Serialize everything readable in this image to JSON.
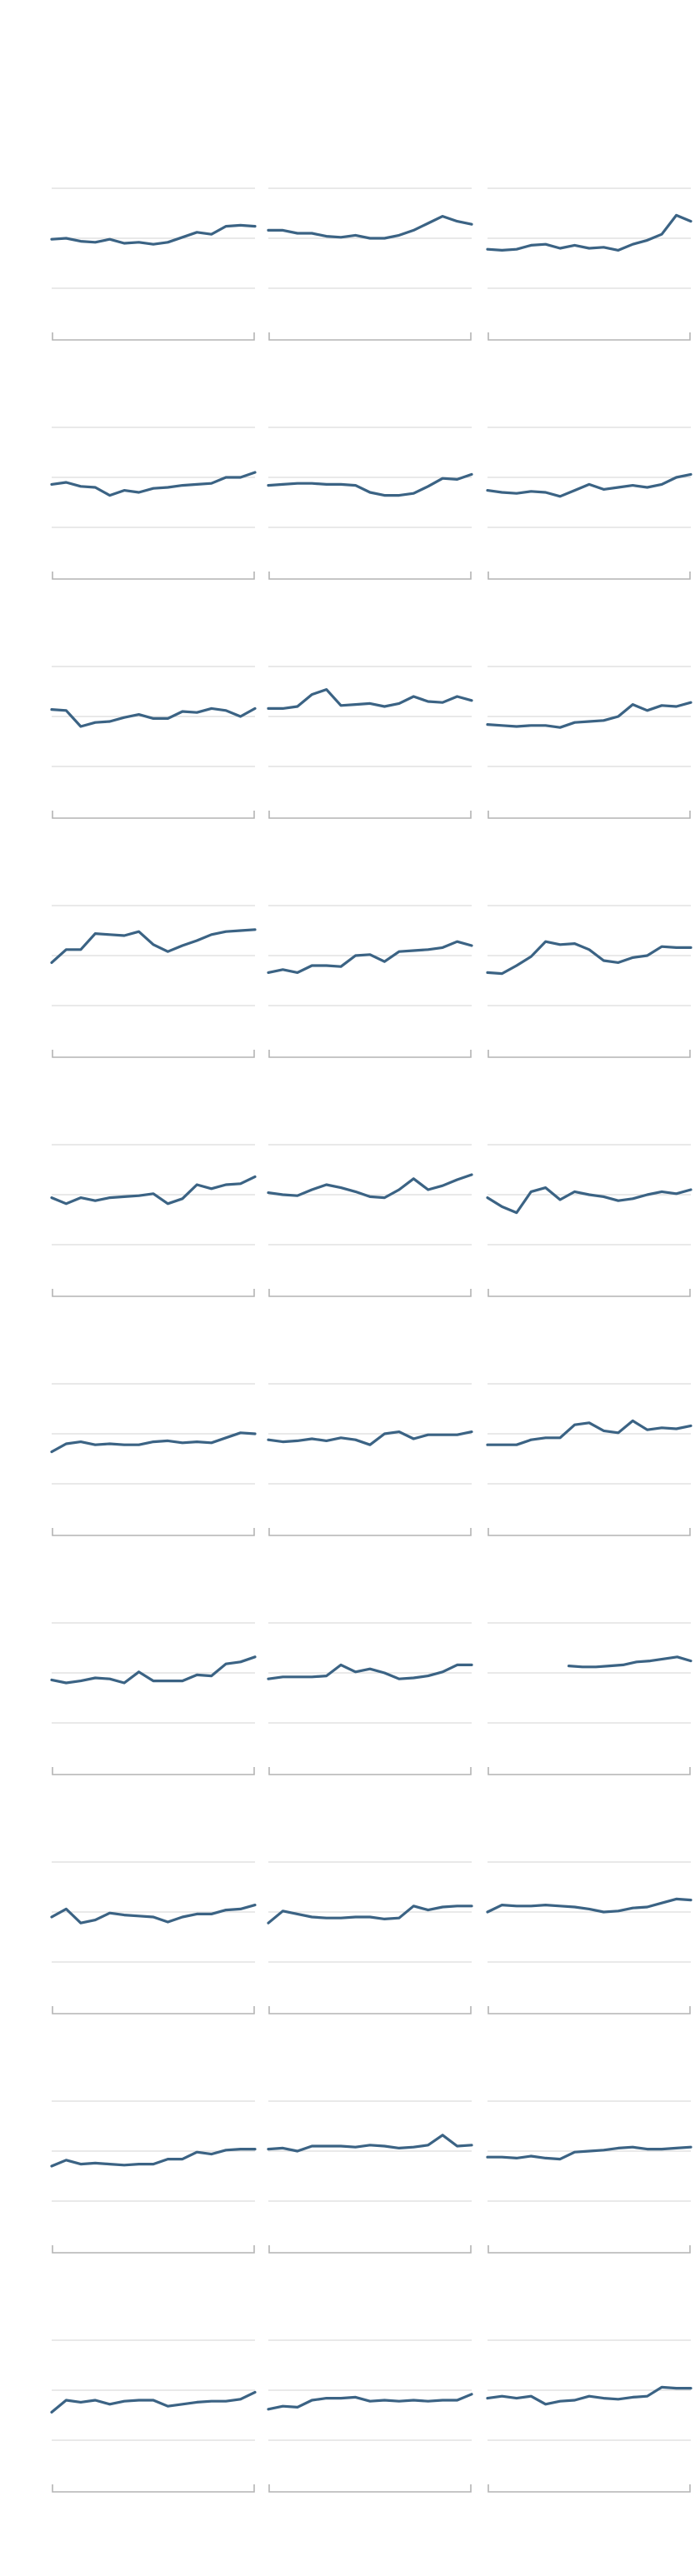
{
  "chart_data": {
    "type": "line",
    "layout": "small-multiples",
    "grid": true,
    "legend": "none",
    "line_color": "#3b6384",
    "ylim": [
      0,
      100
    ],
    "panels": [
      {
        "values": [
          49,
          50,
          47,
          46,
          49,
          45,
          46,
          44,
          46,
          51,
          56,
          54,
          62,
          63,
          62
        ]
      },
      {
        "values": [
          58,
          58,
          55,
          55,
          52,
          51,
          53,
          50,
          50,
          53,
          58,
          65,
          72,
          67,
          64
        ]
      },
      {
        "values": [
          39,
          38,
          39,
          43,
          44,
          40,
          43,
          40,
          41,
          38,
          44,
          48,
          54,
          73,
          67
        ]
      },
      {
        "values": [
          43,
          45,
          41,
          40,
          32,
          37,
          35,
          39,
          40,
          42,
          43,
          44,
          50,
          50,
          55
        ]
      },
      {
        "values": [
          42,
          43,
          44,
          44,
          43,
          43,
          42,
          35,
          32,
          32,
          34,
          41,
          49,
          48,
          53
        ]
      },
      {
        "values": [
          37,
          35,
          34,
          36,
          35,
          31,
          37,
          43,
          38,
          40,
          42,
          40,
          43,
          50,
          53
        ]
      },
      {
        "values": [
          57,
          56,
          40,
          44,
          45,
          49,
          52,
          48,
          48,
          55,
          54,
          58,
          56,
          50,
          58
        ]
      },
      {
        "values": [
          58,
          58,
          60,
          72,
          77,
          61,
          62,
          63,
          60,
          63,
          70,
          65,
          64,
          70,
          66
        ]
      },
      {
        "values": [
          42,
          41,
          40,
          41,
          41,
          39,
          44,
          45,
          46,
          50,
          62,
          56,
          61,
          60,
          64
        ]
      },
      {
        "values": [
          43,
          56,
          56,
          72,
          71,
          70,
          74,
          61,
          54,
          60,
          65,
          71,
          74,
          75,
          76
        ]
      },
      {
        "values": [
          33,
          36,
          33,
          40,
          40,
          39,
          50,
          51,
          44,
          54,
          55,
          56,
          58,
          64,
          60
        ]
      },
      {
        "values": [
          33,
          32,
          40,
          49,
          64,
          61,
          62,
          56,
          45,
          43,
          48,
          50,
          59,
          58,
          58
        ]
      },
      {
        "values": [
          47,
          41,
          47,
          44,
          47,
          48,
          49,
          51,
          41,
          46,
          60,
          56,
          60,
          61,
          68
        ]
      },
      {
        "values": [
          52,
          50,
          49,
          55,
          60,
          57,
          53,
          48,
          47,
          55,
          66,
          55,
          59,
          65,
          70
        ]
      },
      {
        "values": [
          47,
          38,
          32,
          53,
          57,
          45,
          53,
          50,
          48,
          44,
          46,
          50,
          53,
          51,
          55
        ]
      },
      {
        "values": [
          32,
          40,
          42,
          39,
          40,
          39,
          39,
          42,
          43,
          41,
          42,
          41,
          46,
          51,
          50
        ]
      },
      {
        "values": [
          44,
          42,
          43,
          45,
          43,
          46,
          44,
          39,
          50,
          52,
          45,
          49,
          49,
          49,
          52
        ]
      },
      {
        "values": [
          39,
          39,
          39,
          44,
          46,
          46,
          59,
          61,
          53,
          51,
          63,
          54,
          56,
          55,
          58
        ]
      },
      {
        "values": [
          43,
          40,
          42,
          45,
          44,
          40,
          51,
          42,
          42,
          42,
          48,
          47,
          59,
          61,
          66
        ]
      },
      {
        "values": [
          44,
          46,
          46,
          46,
          47,
          58,
          51,
          54,
          50,
          44,
          45,
          47,
          51,
          58,
          58
        ]
      },
      {
        "values": [
          null,
          null,
          null,
          null,
          null,
          null,
          57,
          56,
          56,
          57,
          58,
          61,
          62,
          64,
          66,
          62
        ]
      },
      {
        "values": [
          45,
          53,
          39,
          42,
          49,
          47,
          46,
          45,
          40,
          45,
          48,
          48,
          52,
          53,
          57
        ]
      },
      {
        "values": [
          39,
          51,
          48,
          45,
          44,
          44,
          45,
          45,
          43,
          44,
          56,
          52,
          55,
          56,
          56
        ]
      },
      {
        "values": [
          50,
          57,
          56,
          56,
          57,
          56,
          55,
          53,
          50,
          51,
          54,
          55,
          59,
          63,
          62
        ]
      },
      {
        "values": [
          35,
          41,
          37,
          38,
          37,
          36,
          37,
          37,
          42,
          42,
          49,
          47,
          51,
          52,
          52
        ]
      },
      {
        "values": [
          52,
          53,
          50,
          55,
          55,
          55,
          54,
          56,
          55,
          53,
          54,
          56,
          66,
          55,
          56
        ]
      },
      {
        "values": [
          44,
          44,
          43,
          45,
          43,
          42,
          49,
          50,
          51,
          53,
          54,
          52,
          52,
          53,
          54
        ]
      },
      {
        "values": [
          28,
          40,
          38,
          40,
          36,
          39,
          40,
          40,
          34,
          36,
          38,
          39,
          39,
          41,
          48
        ]
      },
      {
        "values": [
          31,
          34,
          33,
          40,
          42,
          42,
          43,
          39,
          40,
          39,
          40,
          39,
          40,
          40,
          46
        ]
      },
      {
        "values": [
          42,
          44,
          42,
          44,
          36,
          39,
          40,
          44,
          42,
          41,
          43,
          44,
          53,
          52,
          52
        ]
      }
    ]
  }
}
